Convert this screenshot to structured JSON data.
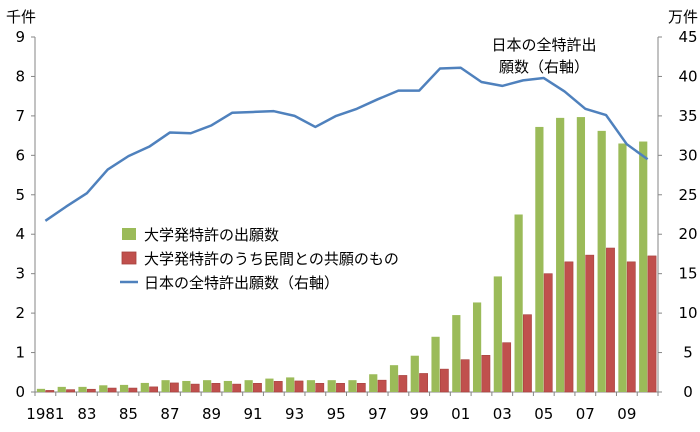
{
  "chart_data": {
    "type": "bar",
    "title": "",
    "y_unit_left": "千件",
    "y_unit_right": "万件",
    "ylim_left": [
      0,
      9
    ],
    "ylim_right": [
      0,
      45
    ],
    "yticks_left": [
      "0",
      "1",
      "2",
      "3",
      "4",
      "5",
      "6",
      "7",
      "8",
      "9"
    ],
    "yticks_right": [
      "0",
      "5",
      "10",
      "15",
      "20",
      "25",
      "30",
      "35",
      "40",
      "45"
    ],
    "x": [
      "1981",
      "1982",
      "1983",
      "1984",
      "1985",
      "1986",
      "1987",
      "1988",
      "1989",
      "1990",
      "1991",
      "1992",
      "1993",
      "1994",
      "1995",
      "1996",
      "1997",
      "1998",
      "1999",
      "2000",
      "2001",
      "2002",
      "2003",
      "2004",
      "2005",
      "2006",
      "2007",
      "2008",
      "2009",
      "2010"
    ],
    "xtick_labels": [
      "1981",
      "83",
      "85",
      "87",
      "89",
      "91",
      "93",
      "95",
      "97",
      "99",
      "01",
      "03",
      "05",
      "07",
      "09"
    ],
    "series": [
      {
        "name": "大学発特許の出願数",
        "kind": "bar",
        "axis": "left",
        "color": "#9BBB59",
        "values": [
          0.08,
          0.13,
          0.13,
          0.17,
          0.18,
          0.23,
          0.3,
          0.28,
          0.3,
          0.28,
          0.3,
          0.34,
          0.37,
          0.3,
          0.3,
          0.3,
          0.45,
          0.68,
          0.92,
          1.4,
          1.95,
          2.27,
          2.93,
          4.5,
          6.72,
          6.95,
          6.97,
          6.62,
          6.3,
          6.35
        ]
      },
      {
        "name": "大学発特許のうち民間との共願のもの",
        "kind": "bar",
        "axis": "left",
        "color": "#C0504D",
        "values": [
          0.04,
          0.06,
          0.07,
          0.1,
          0.1,
          0.13,
          0.23,
          0.2,
          0.22,
          0.2,
          0.22,
          0.27,
          0.28,
          0.22,
          0.22,
          0.22,
          0.3,
          0.42,
          0.47,
          0.58,
          0.82,
          0.93,
          1.25,
          1.96,
          3.0,
          3.3,
          3.47,
          3.65,
          3.3,
          3.45
        ]
      },
      {
        "name": "日本の全特許出願数（右軸）",
        "kind": "line",
        "axis": "right",
        "color": "#4F81BD",
        "values": [
          21.7,
          23.5,
          25.2,
          28.2,
          29.9,
          31.1,
          32.9,
          32.8,
          33.8,
          35.4,
          35.5,
          35.6,
          35.0,
          33.6,
          35.0,
          35.9,
          37.1,
          38.2,
          38.2,
          41.0,
          41.1,
          39.3,
          38.8,
          39.5,
          39.8,
          38.1,
          35.9,
          35.1,
          31.4,
          29.5
        ]
      }
    ],
    "legend": {
      "placement": "center-left",
      "entries": [
        "大学発特許の出願数",
        "大学発特許のうち民間との共願のもの",
        "日本の全特許出願数（右軸）"
      ]
    },
    "annotations": [
      {
        "lines": [
          "日本の全特許出",
          "願数（右軸）"
        ],
        "placement": "top-right"
      }
    ],
    "grid": false
  }
}
